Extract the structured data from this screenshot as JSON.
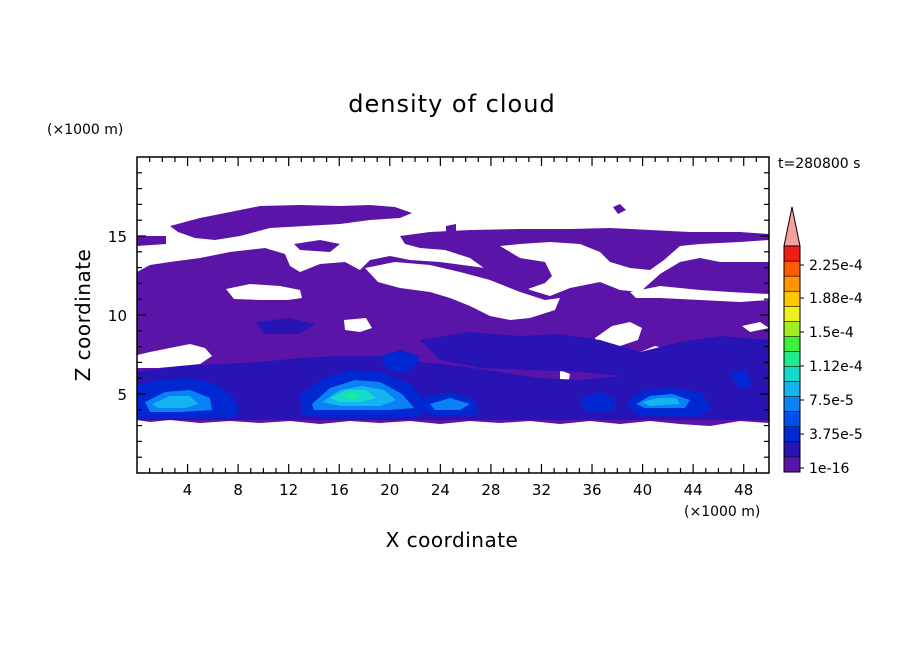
{
  "chart_data": {
    "type": "heatmap",
    "title": "density of cloud",
    "time_label": "t=280800 s",
    "xlabel": "X coordinate",
    "ylabel": "Z coordinate",
    "x_unit": "(×1000 m)",
    "y_unit": "(×1000 m)",
    "xlim": [
      0,
      50
    ],
    "ylim": [
      0,
      20
    ],
    "xticks": [
      4,
      8,
      12,
      16,
      20,
      24,
      28,
      32,
      36,
      40,
      44,
      48
    ],
    "yticks": [
      5,
      10,
      15
    ],
    "colorbar": {
      "labels": [
        "2.25e-4",
        "1.88e-4",
        "1.5e-4",
        "1.12e-4",
        "7.5e-5",
        "3.75e-5",
        "1e-16"
      ],
      "colors": [
        "#5a14a8",
        "#2814b4",
        "#0028d2",
        "#0050f0",
        "#0a82f5",
        "#14b4f0",
        "#14dcc8",
        "#1eeb8c",
        "#3cf03c",
        "#a0f01e",
        "#f0f01e",
        "#ffc800",
        "#ff9600",
        "#ff5a00",
        "#f01e14"
      ],
      "over_color": "#f5a0a0"
    }
  }
}
